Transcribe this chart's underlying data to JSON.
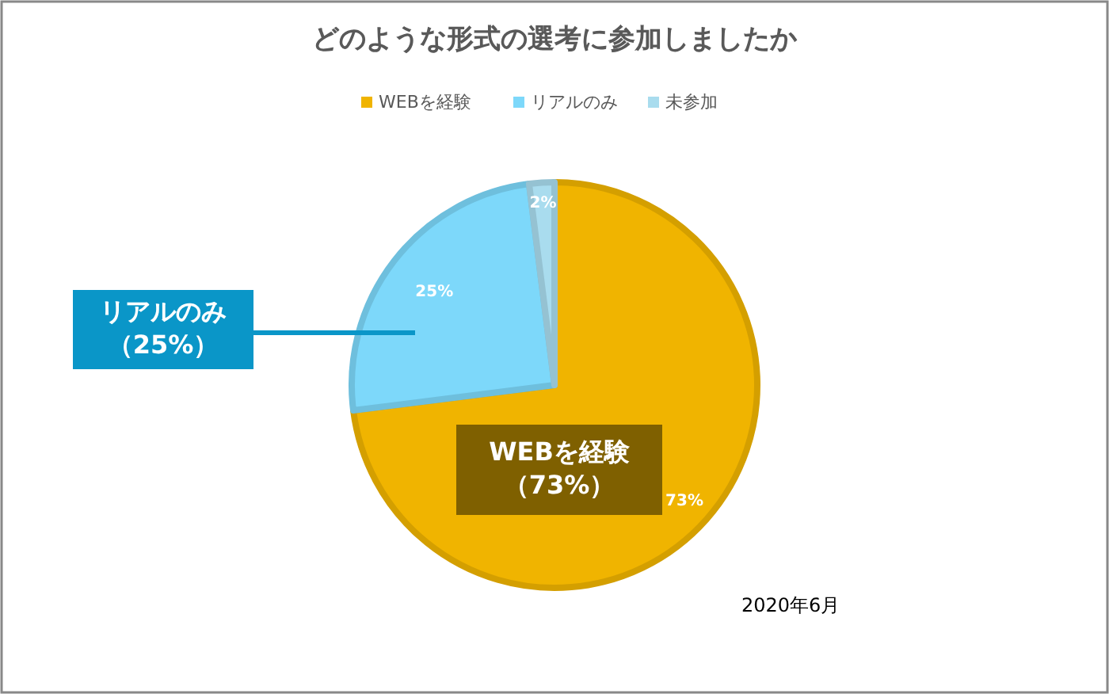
{
  "chart_data": {
    "type": "pie",
    "title": "どのような形式の選考に参加しましたか",
    "categories": [
      "WEBを経験",
      "リアルのみ",
      "未参加"
    ],
    "values": [
      73,
      25,
      2
    ],
    "colors": [
      "#f0b400",
      "#7dd8fa",
      "#a9dcee"
    ],
    "value_labels": [
      "73%",
      "25%",
      "2%"
    ],
    "legend": "top",
    "annotations": [
      "リアルのみ",
      "（25%）",
      "WEBを経験",
      "（73%）",
      "2020年6月"
    ]
  }
}
